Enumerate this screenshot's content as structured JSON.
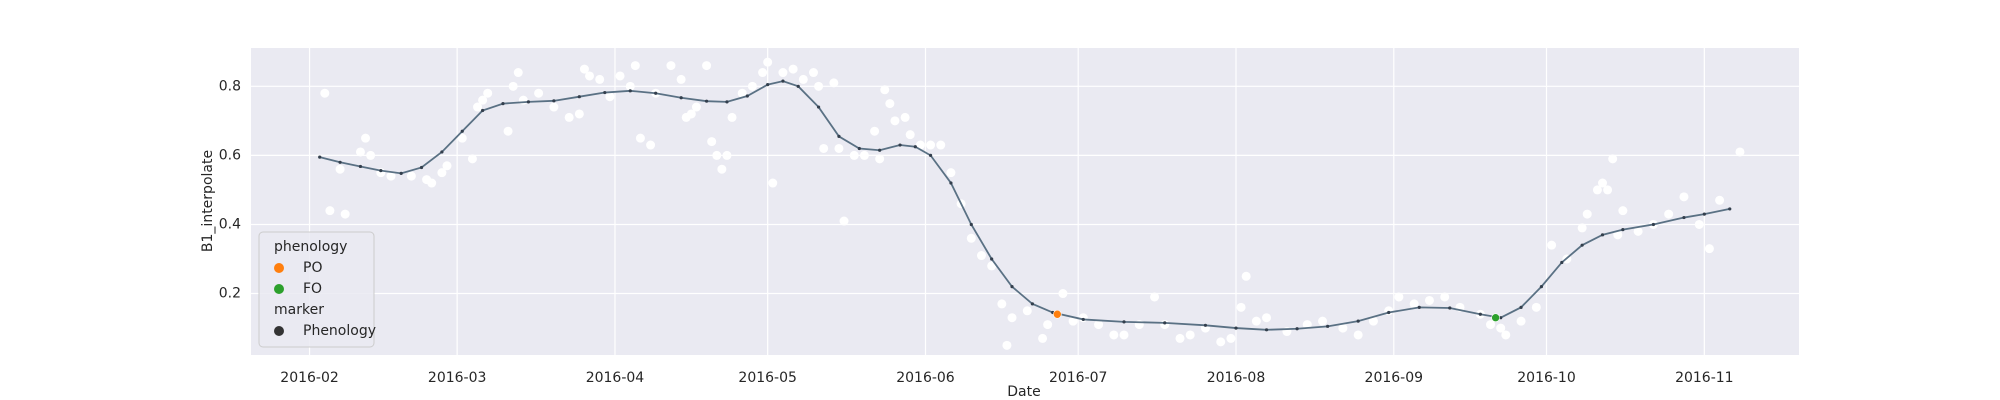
{
  "chart_data": {
    "type": "scatter",
    "xlabel": "Date",
    "ylabel": "B1_interpolate",
    "xlim": [
      20.5,
      324.6
    ],
    "ylim": [
      0.022,
      0.911
    ],
    "xticks": [
      {
        "value": 32,
        "label": "2016-02"
      },
      {
        "value": 61,
        "label": "2016-03"
      },
      {
        "value": 92,
        "label": "2016-04"
      },
      {
        "value": 122,
        "label": "2016-05"
      },
      {
        "value": 153,
        "label": "2016-06"
      },
      {
        "value": 183,
        "label": "2016-07"
      },
      {
        "value": 214,
        "label": "2016-08"
      },
      {
        "value": 245,
        "label": "2016-09"
      },
      {
        "value": 275,
        "label": "2016-10"
      },
      {
        "value": 306,
        "label": "2016-11"
      }
    ],
    "yticks": [
      0.2,
      0.4,
      0.6,
      0.8
    ],
    "grid": true,
    "background": "#eaeaf2",
    "legend": {
      "corner": "lower left",
      "title": "phenology",
      "marker_title": "marker",
      "marker_label": "Phenology",
      "marker_color": "#333333"
    },
    "series": [
      {
        "type": "scatter",
        "color": "#ffffff",
        "x": [
          35,
          36,
          38,
          39,
          42,
          43,
          44,
          46,
          48,
          52,
          55,
          56,
          58,
          59,
          62,
          64,
          65,
          66,
          67,
          71,
          72,
          73,
          74,
          77,
          80,
          83,
          85,
          86,
          87,
          89,
          91,
          93,
          95,
          96,
          97,
          99,
          100,
          103,
          105,
          106,
          107,
          108,
          110,
          111,
          112,
          113,
          114,
          115,
          117,
          119,
          121,
          122,
          123,
          125,
          127,
          129,
          131,
          132,
          133,
          135,
          136,
          137,
          139,
          141,
          143,
          144,
          145,
          146,
          147,
          149,
          150,
          152,
          154,
          156,
          158,
          160,
          162,
          164,
          166,
          168,
          169,
          170,
          173,
          176,
          177,
          180,
          182,
          184,
          187,
          190,
          192,
          195,
          198,
          200,
          203,
          205,
          208,
          211,
          213,
          215,
          216,
          218,
          220,
          224,
          228,
          231,
          235,
          238,
          241,
          244,
          246,
          249,
          252,
          255,
          258,
          262,
          264,
          266,
          267,
          270,
          273,
          276,
          279,
          282,
          283,
          285,
          286,
          287,
          288,
          289,
          290,
          293,
          296,
          299,
          302,
          305,
          307,
          309,
          313
        ],
        "values": [
          0.78,
          0.44,
          0.56,
          0.43,
          0.61,
          0.65,
          0.6,
          0.55,
          0.54,
          0.54,
          0.53,
          0.52,
          0.55,
          0.57,
          0.65,
          0.59,
          0.74,
          0.76,
          0.78,
          0.67,
          0.8,
          0.84,
          0.76,
          0.78,
          0.74,
          0.71,
          0.72,
          0.85,
          0.83,
          0.82,
          0.77,
          0.83,
          0.8,
          0.86,
          0.65,
          0.63,
          0.78,
          0.86,
          0.82,
          0.71,
          0.72,
          0.74,
          0.86,
          0.64,
          0.6,
          0.56,
          0.6,
          0.71,
          0.78,
          0.8,
          0.84,
          0.87,
          0.52,
          0.84,
          0.85,
          0.82,
          0.84,
          0.8,
          0.62,
          0.81,
          0.62,
          0.41,
          0.6,
          0.6,
          0.67,
          0.59,
          0.79,
          0.75,
          0.7,
          0.71,
          0.66,
          0.63,
          0.63,
          0.63,
          0.55,
          0.46,
          0.36,
          0.31,
          0.28,
          0.17,
          0.05,
          0.13,
          0.15,
          0.07,
          0.11,
          0.2,
          0.12,
          0.13,
          0.11,
          0.08,
          0.08,
          0.11,
          0.19,
          0.11,
          0.07,
          0.08,
          0.1,
          0.06,
          0.07,
          0.16,
          0.25,
          0.12,
          0.13,
          0.09,
          0.11,
          0.12,
          0.1,
          0.08,
          0.12,
          0.15,
          0.19,
          0.17,
          0.18,
          0.19,
          0.16,
          0.14,
          0.11,
          0.1,
          0.08,
          0.12,
          0.16,
          0.34,
          0.3,
          0.39,
          0.43,
          0.5,
          0.52,
          0.5,
          0.59,
          0.37,
          0.44,
          0.38,
          0.4,
          0.43,
          0.48,
          0.4,
          0.33,
          0.47,
          0.61
        ]
      },
      {
        "type": "line",
        "color": "#5a7184",
        "x": [
          34,
          38,
          42,
          46,
          50,
          54,
          58,
          62,
          66,
          70,
          75,
          80,
          85,
          90,
          95,
          100,
          105,
          110,
          114,
          118,
          122,
          125,
          128,
          132,
          136,
          140,
          144,
          148,
          151,
          154,
          158,
          162,
          166,
          170,
          174,
          178,
          184,
          192,
          200,
          208,
          214,
          220,
          226,
          232,
          238,
          244,
          250,
          256,
          262,
          266,
          270,
          274,
          278,
          282,
          286,
          290,
          296,
          302,
          306,
          311
        ],
        "values": [
          0.595,
          0.58,
          0.568,
          0.556,
          0.548,
          0.565,
          0.61,
          0.67,
          0.73,
          0.75,
          0.755,
          0.758,
          0.77,
          0.782,
          0.787,
          0.78,
          0.767,
          0.757,
          0.755,
          0.772,
          0.805,
          0.815,
          0.8,
          0.74,
          0.655,
          0.62,
          0.615,
          0.63,
          0.625,
          0.6,
          0.52,
          0.4,
          0.3,
          0.22,
          0.17,
          0.145,
          0.125,
          0.118,
          0.115,
          0.108,
          0.1,
          0.095,
          0.098,
          0.105,
          0.12,
          0.145,
          0.16,
          0.158,
          0.14,
          0.13,
          0.16,
          0.22,
          0.29,
          0.34,
          0.37,
          0.385,
          0.4,
          0.42,
          0.43,
          0.445
        ]
      },
      {
        "type": "scatter",
        "name": "PO",
        "color": "#ff7f0e",
        "x": [
          178.9
        ],
        "values": [
          0.14
        ]
      },
      {
        "type": "scatter",
        "name": "FO",
        "color": "#2ca02c",
        "x": [
          265
        ],
        "values": [
          0.13
        ]
      }
    ]
  }
}
